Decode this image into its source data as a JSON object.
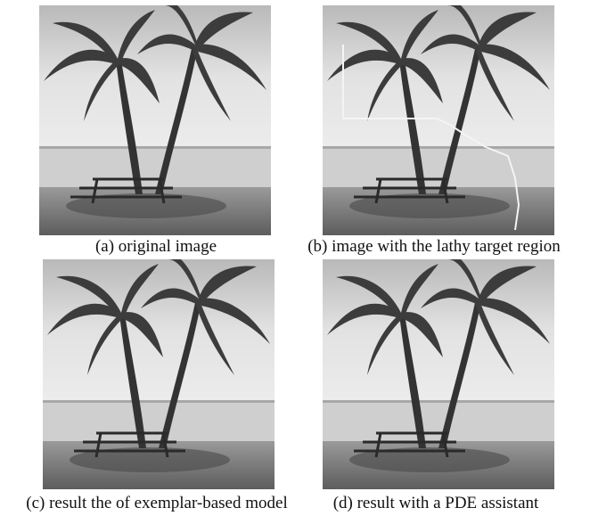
{
  "figures": [
    {
      "caption": "(a) original image"
    },
    {
      "caption": "(b) image with the lathy target region"
    },
    {
      "caption": "(c) result the of exemplar-based model"
    },
    {
      "caption": "(d) result with a PDE assistant"
    }
  ]
}
